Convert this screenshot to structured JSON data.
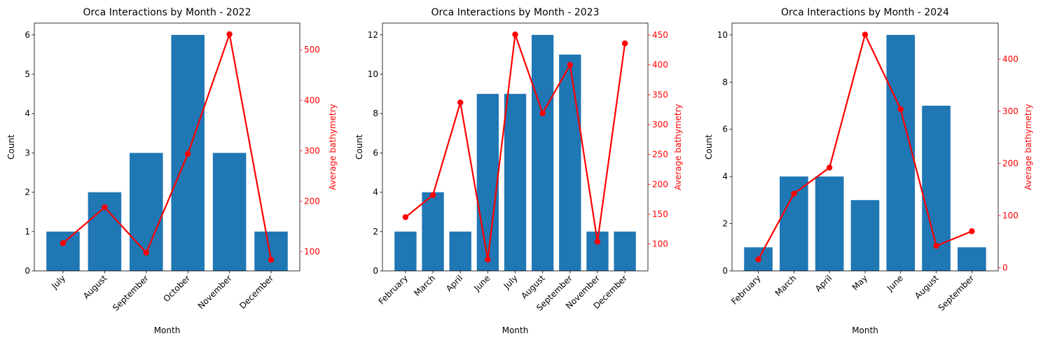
{
  "chart_data": [
    {
      "type": "bar",
      "title": "Orca Interactions by Month - 2022",
      "xlabel": "Month",
      "ylabel": "Count",
      "y2label": "Average bathymetry",
      "categories": [
        "July",
        "August",
        "September",
        "October",
        "November",
        "December"
      ],
      "series": [
        {
          "type": "bar",
          "axis": "left",
          "color": "#1f77b4",
          "values": [
            1,
            2,
            3,
            6,
            3,
            1
          ]
        },
        {
          "type": "line",
          "axis": "right",
          "color": "#ff0000",
          "values": [
            117,
            188,
            98,
            294,
            531,
            84
          ]
        }
      ],
      "ylim": [
        0,
        6.3
      ],
      "yticks": [
        0,
        1,
        2,
        3,
        4,
        5,
        6
      ],
      "y2lim": [
        62,
        553
      ],
      "y2ticks": [
        100,
        200,
        300,
        400,
        500
      ]
    },
    {
      "type": "bar",
      "title": "Orca Interactions by Month - 2023",
      "xlabel": "Month",
      "ylabel": "Count",
      "y2label": "Average bathymetry",
      "categories": [
        "February",
        "March",
        "April",
        "June",
        "July",
        "August",
        "September",
        "November",
        "December"
      ],
      "series": [
        {
          "type": "bar",
          "axis": "left",
          "color": "#1f77b4",
          "values": [
            2,
            4,
            2,
            9,
            9,
            12,
            11,
            2,
            2
          ]
        },
        {
          "type": "line",
          "axis": "right",
          "color": "#ff0000",
          "values": [
            145,
            182,
            337,
            74,
            451,
            319,
            400,
            104,
            436
          ]
        }
      ],
      "ylim": [
        0,
        12.6
      ],
      "yticks": [
        0,
        2,
        4,
        6,
        8,
        10,
        12
      ],
      "y2lim": [
        55,
        470
      ],
      "y2ticks": [
        100,
        150,
        200,
        250,
        300,
        350,
        400,
        450
      ]
    },
    {
      "type": "bar",
      "title": "Orca Interactions by Month - 2024",
      "xlabel": "Month",
      "ylabel": "Count",
      "y2label": "Average bathymetry",
      "categories": [
        "February",
        "March",
        "April",
        "May",
        "June",
        "August",
        "September"
      ],
      "series": [
        {
          "type": "bar",
          "axis": "left",
          "color": "#1f77b4",
          "values": [
            1,
            4,
            4,
            3,
            10,
            7,
            1
          ]
        },
        {
          "type": "line",
          "axis": "right",
          "color": "#ff0000",
          "values": [
            16,
            142,
            192,
            447,
            304,
            42,
            70
          ]
        }
      ],
      "ylim": [
        0,
        10.5
      ],
      "yticks": [
        0,
        2,
        4,
        6,
        8,
        10
      ],
      "y2lim": [
        -6,
        469
      ],
      "y2ticks": [
        0,
        100,
        200,
        300,
        400
      ]
    }
  ]
}
